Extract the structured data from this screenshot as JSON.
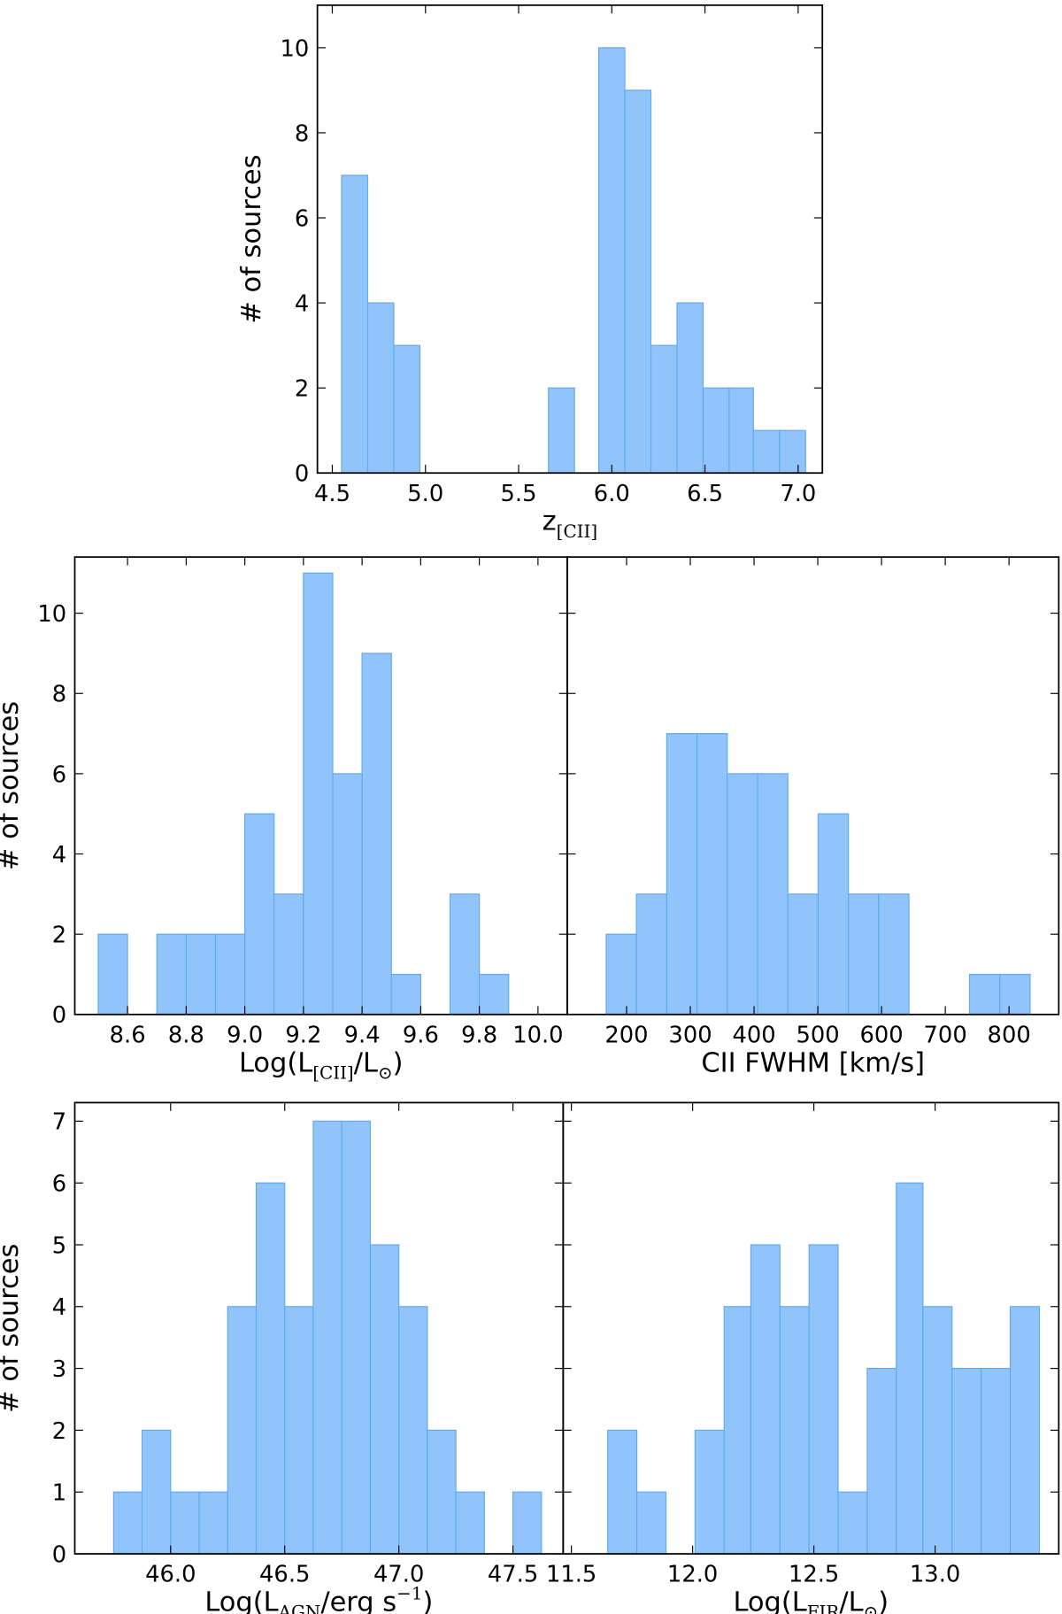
{
  "chart_data": [
    {
      "type": "histogram",
      "ylabel": "# of sources",
      "xlabel": [
        {
          "text": "z"
        },
        {
          "text": "[CII]",
          "shift": "sub"
        }
      ],
      "bins": [
        4.55,
        4.69,
        4.83,
        4.97,
        5.1,
        5.24,
        5.38,
        5.52,
        5.66,
        5.8,
        5.93,
        6.07,
        6.21,
        6.35,
        6.49,
        6.63,
        6.76,
        6.9,
        7.04
      ],
      "counts": [
        7,
        4,
        3,
        0,
        0,
        0,
        0,
        0,
        2,
        0,
        10,
        9,
        3,
        4,
        2,
        2,
        1,
        1
      ],
      "color": "#90c4fb",
      "edgecolor": "#62a9ee",
      "xlim": [
        4.42,
        7.13
      ],
      "ylim": [
        0,
        11
      ],
      "xticks": [
        4.5,
        {
          "value": 5,
          "label": "5.0"
        },
        5.5,
        {
          "value": 6,
          "label": "6.0"
        },
        6.5,
        {
          "value": 7,
          "label": "7.0"
        }
      ],
      "yticks": [
        0,
        2,
        4,
        6,
        8,
        10
      ]
    },
    {
      "type": "histogram",
      "ylabel": "# of sources",
      "xlabel": [
        {
          "text": "Log(L"
        },
        {
          "text": "[CII]",
          "shift": "sub"
        },
        {
          "text": "/L"
        },
        {
          "text": "⊙",
          "shift": "sub"
        },
        {
          "text": ")"
        }
      ],
      "bins": [
        8.5,
        8.6,
        8.7,
        8.8,
        8.9,
        9.0,
        9.1,
        9.2,
        9.3,
        9.4,
        9.5,
        9.6,
        9.7,
        9.8,
        9.9
      ],
      "counts": [
        2,
        0,
        2,
        2,
        2,
        5,
        3,
        11,
        6,
        9,
        1,
        0,
        3,
        1
      ],
      "color": "#90c4fb",
      "edgecolor": "#62a9ee",
      "xlim": [
        8.42,
        10.1
      ],
      "ylim": [
        0,
        11.4
      ],
      "xticks": [
        8.6,
        8.8,
        {
          "value": 9,
          "label": "9.0"
        },
        9.2,
        9.4,
        9.6,
        9.8,
        {
          "value": 10,
          "label": "10.0"
        }
      ],
      "yticks": [
        0,
        2,
        4,
        6,
        8,
        10
      ]
    },
    {
      "type": "histogram",
      "xlabel": [
        {
          "text": "CII FWHM [km/s]"
        }
      ],
      "bins": [
        168,
        215.5,
        263,
        310.5,
        358,
        405.5,
        453,
        500.5,
        548,
        595.5,
        643,
        690.5,
        738,
        785.5,
        833
      ],
      "counts": [
        2,
        3,
        7,
        7,
        6,
        6,
        3,
        5,
        3,
        3,
        0,
        0,
        1,
        1
      ],
      "color": "#90c4fb",
      "edgecolor": "#62a9ee",
      "xlim": [
        107,
        878
      ],
      "ylim": [
        0,
        11.4
      ],
      "xticks": [
        200,
        300,
        400,
        500,
        600,
        700,
        800
      ],
      "yticks": [
        0,
        2,
        4,
        6,
        8,
        10
      ]
    },
    {
      "type": "histogram",
      "ylabel": "# of sources",
      "xlabel": [
        {
          "text": "Log(L"
        },
        {
          "text": "AGN",
          "shift": "sub"
        },
        {
          "text": "/erg s"
        },
        {
          "text": "−1",
          "shift": "sup"
        },
        {
          "text": ")"
        }
      ],
      "bins": [
        45.75,
        45.875,
        46.0,
        46.125,
        46.25,
        46.375,
        46.5,
        46.625,
        46.75,
        46.875,
        47.0,
        47.125,
        47.25,
        47.375,
        47.5,
        47.625
      ],
      "counts": [
        1,
        2,
        1,
        1,
        4,
        6,
        4,
        7,
        7,
        5,
        4,
        2,
        1,
        0,
        1
      ],
      "color": "#90c4fb",
      "edgecolor": "#62a9ee",
      "xlim": [
        45.58,
        47.72
      ],
      "ylim": [
        0,
        7.3
      ],
      "xticks": [
        {
          "value": 46,
          "label": "46.0"
        },
        46.5,
        {
          "value": 47,
          "label": "47.0"
        },
        47.5
      ],
      "yticks": [
        0,
        1,
        2,
        3,
        4,
        5,
        6,
        7
      ]
    },
    {
      "type": "histogram",
      "xlabel": [
        {
          "text": "Log(L"
        },
        {
          "text": "FIR",
          "shift": "sub"
        },
        {
          "text": "/L"
        },
        {
          "text": "⊙",
          "shift": "sub"
        },
        {
          "text": ")"
        }
      ],
      "bins": [
        11.65,
        11.77,
        11.89,
        12.01,
        12.13,
        12.24,
        12.36,
        12.48,
        12.6,
        12.72,
        12.84,
        12.95,
        13.07,
        13.19,
        13.31,
        13.43
      ],
      "counts": [
        2,
        1,
        0,
        2,
        4,
        5,
        4,
        5,
        1,
        3,
        6,
        4,
        3,
        3,
        4
      ],
      "color": "#90c4fb",
      "edgecolor": "#62a9ee",
      "xlim": [
        11.466,
        13.51
      ],
      "ylim": [
        0,
        7.3
      ],
      "xticks": [
        11.5,
        {
          "value": 12,
          "label": "12.0"
        },
        12.5,
        {
          "value": 13,
          "label": "13.0"
        }
      ],
      "yticks": [
        0,
        1,
        2,
        3,
        4,
        5,
        6,
        7
      ]
    }
  ]
}
